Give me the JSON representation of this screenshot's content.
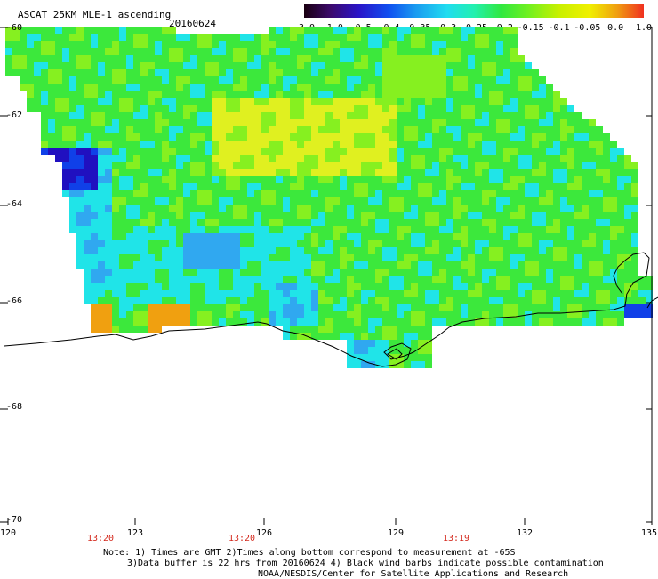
{
  "header": {
    "title": "ASCAT 25KM MLE-1 ascending",
    "date": "20160624"
  },
  "colorbar": {
    "labels": [
      "-3.0",
      "-1.0",
      "-0.5",
      "-0.4",
      "-0.35",
      "-0.3",
      "-0.25",
      "-0.2",
      "-0.15",
      "-0.1",
      "-0.05",
      "0.0",
      "1.0"
    ],
    "colors": [
      "#1a0010",
      "#3c0a6e",
      "#2a14c8",
      "#1050f0",
      "#1a9cf0",
      "#20dcf0",
      "#22f0b0",
      "#30e840",
      "#70f020",
      "#c8f000",
      "#f0f000",
      "#f0a010",
      "#f03020"
    ]
  },
  "axes": {
    "lat_labels": [
      "-60",
      "-62",
      "-64",
      "-66",
      "-68",
      "-70"
    ],
    "lon_labels": [
      "120",
      "123",
      "126",
      "129",
      "132",
      "135"
    ]
  },
  "times": [
    "13:20",
    "13:20",
    "13:19"
  ],
  "notes": {
    "line1": "Note: 1) Times are GMT 2)Times along bottom correspond to measurement at -65S",
    "line2": "3)Data buffer is 22 hrs from 20160624 4) Black wind barbs indicate possible contamination",
    "line3": "NOAA/NESDIS/Center for Satellite Applications and Research"
  },
  "map_colors": {
    "land_green": "#3ce83c",
    "light_green": "#86f020",
    "yellow": "#e0f020",
    "cyan": "#20e4e8",
    "light_blue": "#30a8f0",
    "blue": "#1040e8",
    "deep_blue": "#2010c0",
    "purple": "#5010a0",
    "orange": "#f0a010",
    "red": "#e84020"
  }
}
